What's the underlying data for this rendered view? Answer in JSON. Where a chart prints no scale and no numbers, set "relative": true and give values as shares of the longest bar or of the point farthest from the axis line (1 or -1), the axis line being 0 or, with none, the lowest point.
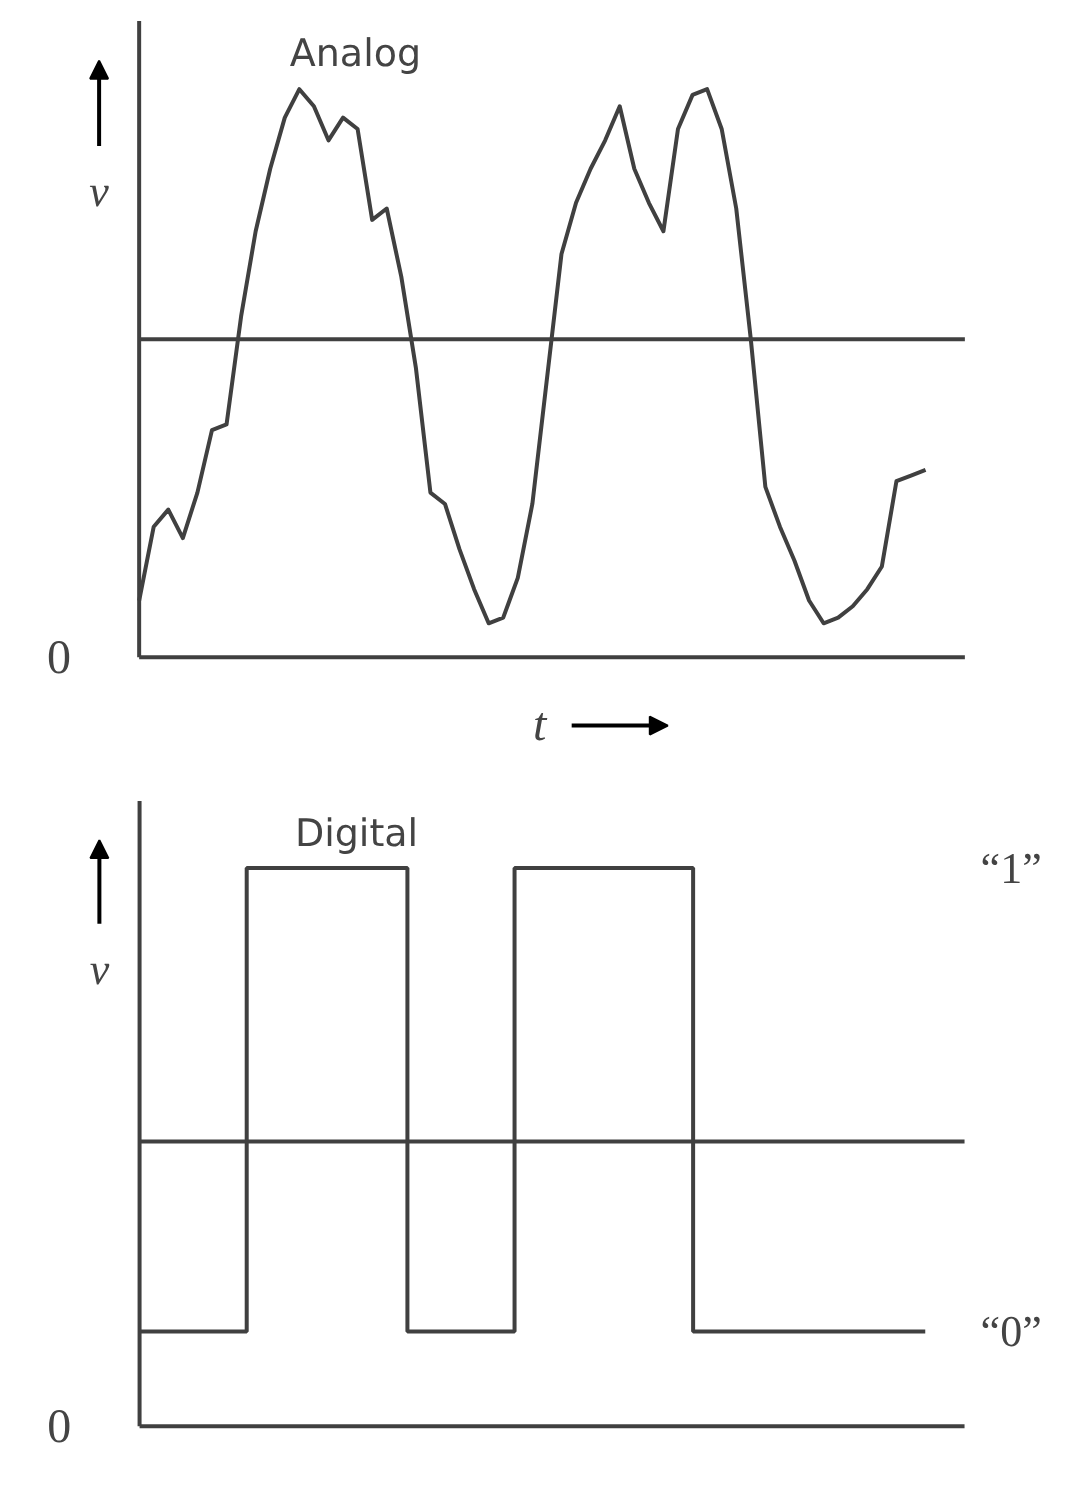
{
  "chart_data": [
    {
      "type": "line",
      "title": "Analog",
      "xlabel": "t",
      "ylabel": "v",
      "relative": true,
      "annotations": [
        "0"
      ],
      "categories": [
        null,
        null,
        null,
        null,
        null,
        null,
        null,
        null,
        null,
        null,
        null,
        null,
        null,
        null,
        null,
        null,
        null,
        null,
        null,
        null,
        null,
        null,
        null,
        null,
        null,
        null,
        null,
        null,
        null,
        null,
        null,
        null,
        null,
        null,
        null,
        null,
        null,
        null,
        null,
        null,
        null,
        null,
        null,
        null,
        null,
        null,
        null,
        null,
        null,
        null,
        null,
        null,
        null,
        null,
        null
      ],
      "series": [
        {
          "color": "#404040",
          "values": [
            0.1,
            0.23,
            0.26,
            0.21,
            0.29,
            0.4,
            0.41,
            0.6,
            0.75,
            0.86,
            0.95,
            1.0,
            0.97,
            0.91,
            0.95,
            0.93,
            0.77,
            0.79,
            0.67,
            0.51,
            0.29,
            0.27,
            0.19,
            0.12,
            0.06,
            0.07,
            0.14,
            0.27,
            0.49,
            0.71,
            0.8,
            0.86,
            0.91,
            0.97,
            0.86,
            0.8,
            0.75,
            0.93,
            0.99,
            1.0,
            0.93,
            0.79,
            0.56,
            0.3,
            0.23,
            0.17,
            0.1,
            0.06,
            0.07,
            0.09,
            0.12,
            0.16,
            0.31,
            0.32,
            0.33
          ]
        }
      ],
      "ref_lines": [
        {
          "axis": "y",
          "value": 0.56,
          "color": "#404040"
        }
      ]
    },
    {
      "type": "step",
      "title": "Digital",
      "ylabel": "v",
      "relative": true,
      "annotations": [
        "0",
        "“1”",
        "“0”"
      ],
      "categories": [
        null,
        null,
        null,
        null,
        null,
        null,
        null,
        null,
        null,
        null,
        null,
        null,
        null,
        null,
        null,
        null,
        null,
        null,
        null,
        null,
        null,
        null,
        null,
        null,
        null,
        null,
        null,
        null,
        null,
        null,
        null,
        null,
        null,
        null,
        null,
        null,
        null,
        null,
        null,
        null,
        null,
        null,
        null,
        null,
        null
      ],
      "series": [
        {
          "color": "#404040",
          "values": [
            0.17,
            0.17,
            0.17,
            0.17,
            0.17,
            0.17,
            1.0,
            1.0,
            1.0,
            1.0,
            1.0,
            1.0,
            1.0,
            1.0,
            1.0,
            0.17,
            0.17,
            0.17,
            0.17,
            0.17,
            0.17,
            1.0,
            1.0,
            1.0,
            1.0,
            1.0,
            1.0,
            1.0,
            1.0,
            1.0,
            1.0,
            0.17,
            0.17,
            0.17,
            0.17,
            0.17,
            0.17,
            0.17,
            0.17,
            0.17,
            0.17,
            0.17,
            0.17,
            0.17,
            0.17
          ]
        }
      ],
      "ref_lines": [
        {
          "axis": "y",
          "value": 0.51,
          "color": "#404040"
        }
      ]
    }
  ]
}
